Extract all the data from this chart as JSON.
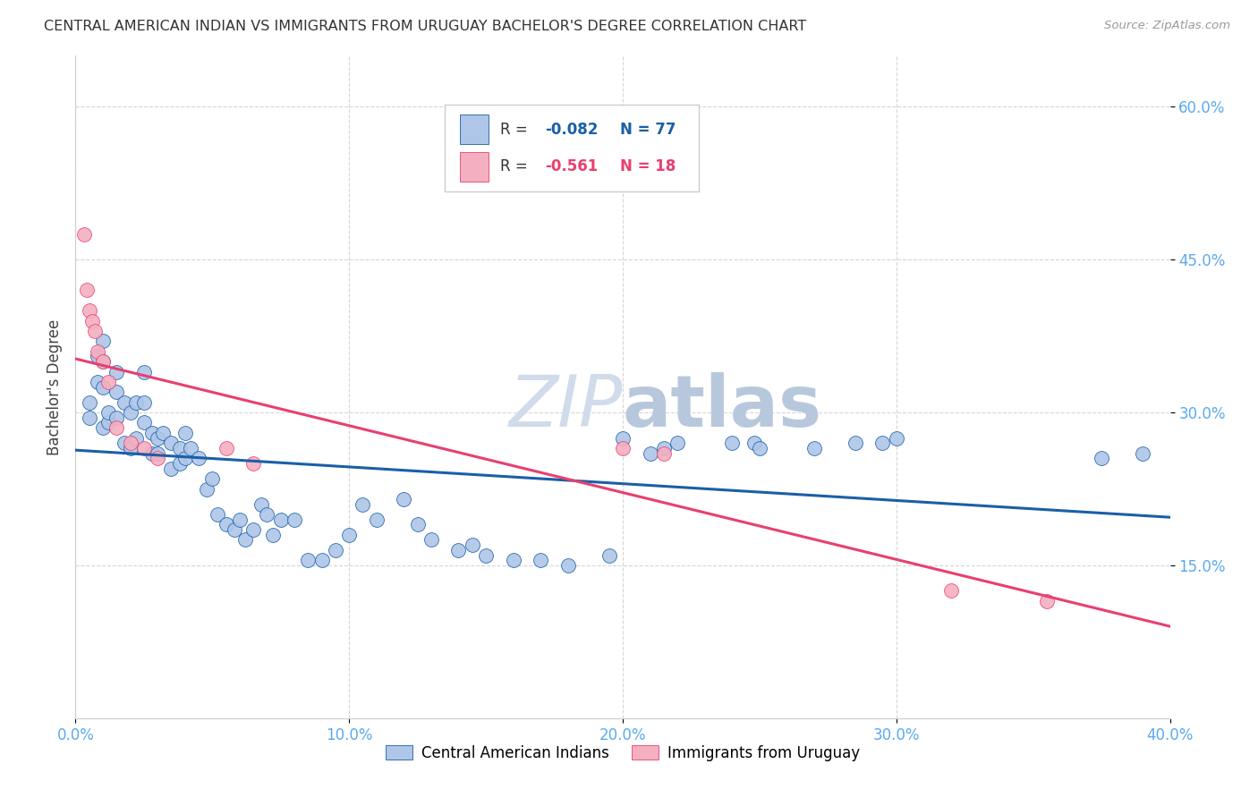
{
  "title": "CENTRAL AMERICAN INDIAN VS IMMIGRANTS FROM URUGUAY BACHELOR'S DEGREE CORRELATION CHART",
  "source": "Source: ZipAtlas.com",
  "ylabel": "Bachelor's Degree",
  "xlim": [
    0.0,
    0.4
  ],
  "ylim": [
    0.0,
    0.65
  ],
  "xtick_labels": [
    "0.0%",
    "",
    "",
    "",
    "",
    "10.0%",
    "",
    "",
    "",
    "",
    "20.0%",
    "",
    "",
    "",
    "",
    "30.0%",
    "",
    "",
    "",
    "",
    "40.0%"
  ],
  "xtick_values": [
    0.0,
    0.02,
    0.04,
    0.06,
    0.08,
    0.1,
    0.12,
    0.14,
    0.16,
    0.18,
    0.2,
    0.22,
    0.24,
    0.26,
    0.28,
    0.3,
    0.32,
    0.34,
    0.36,
    0.38,
    0.4
  ],
  "xtick_show": [
    0.0,
    0.1,
    0.2,
    0.3,
    0.4
  ],
  "xtick_show_labels": [
    "0.0%",
    "10.0%",
    "20.0%",
    "30.0%",
    "40.0%"
  ],
  "ytick_values": [
    0.15,
    0.3,
    0.45,
    0.6
  ],
  "ytick_labels": [
    "15.0%",
    "30.0%",
    "45.0%",
    "60.0%"
  ],
  "legend_R_blue": "-0.082",
  "legend_N_blue": "77",
  "legend_R_pink": "-0.561",
  "legend_N_pink": "18",
  "blue_color": "#aec6e8",
  "pink_color": "#f4afc0",
  "line_blue": "#1a5fa8",
  "line_pink": "#e84070",
  "tick_color": "#5aaaee",
  "watermark_color": "#d0dcea",
  "blue_x": [
    0.005,
    0.005,
    0.008,
    0.008,
    0.01,
    0.01,
    0.01,
    0.01,
    0.012,
    0.012,
    0.015,
    0.015,
    0.015,
    0.018,
    0.018,
    0.02,
    0.02,
    0.022,
    0.022,
    0.025,
    0.025,
    0.025,
    0.028,
    0.028,
    0.03,
    0.03,
    0.032,
    0.035,
    0.035,
    0.038,
    0.038,
    0.04,
    0.04,
    0.042,
    0.045,
    0.048,
    0.05,
    0.052,
    0.055,
    0.058,
    0.06,
    0.062,
    0.065,
    0.068,
    0.07,
    0.072,
    0.075,
    0.08,
    0.085,
    0.09,
    0.095,
    0.1,
    0.105,
    0.11,
    0.12,
    0.125,
    0.13,
    0.14,
    0.145,
    0.15,
    0.16,
    0.17,
    0.18,
    0.195,
    0.2,
    0.21,
    0.215,
    0.22,
    0.24,
    0.248,
    0.25,
    0.27,
    0.285,
    0.295,
    0.3,
    0.375,
    0.39
  ],
  "blue_y": [
    0.295,
    0.31,
    0.33,
    0.355,
    0.37,
    0.35,
    0.325,
    0.285,
    0.29,
    0.3,
    0.34,
    0.295,
    0.32,
    0.27,
    0.31,
    0.265,
    0.3,
    0.275,
    0.31,
    0.34,
    0.31,
    0.29,
    0.26,
    0.28,
    0.26,
    0.275,
    0.28,
    0.27,
    0.245,
    0.25,
    0.265,
    0.255,
    0.28,
    0.265,
    0.255,
    0.225,
    0.235,
    0.2,
    0.19,
    0.185,
    0.195,
    0.175,
    0.185,
    0.21,
    0.2,
    0.18,
    0.195,
    0.195,
    0.155,
    0.155,
    0.165,
    0.18,
    0.21,
    0.195,
    0.215,
    0.19,
    0.175,
    0.165,
    0.17,
    0.16,
    0.155,
    0.155,
    0.15,
    0.16,
    0.275,
    0.26,
    0.265,
    0.27,
    0.27,
    0.27,
    0.265,
    0.265,
    0.27,
    0.27,
    0.275,
    0.255,
    0.26
  ],
  "pink_x": [
    0.003,
    0.004,
    0.005,
    0.006,
    0.007,
    0.008,
    0.01,
    0.012,
    0.015,
    0.02,
    0.025,
    0.03,
    0.055,
    0.065,
    0.2,
    0.215,
    0.32,
    0.355
  ],
  "pink_y": [
    0.475,
    0.42,
    0.4,
    0.39,
    0.38,
    0.36,
    0.35,
    0.33,
    0.285,
    0.27,
    0.265,
    0.255,
    0.265,
    0.25,
    0.265,
    0.26,
    0.125,
    0.115
  ]
}
